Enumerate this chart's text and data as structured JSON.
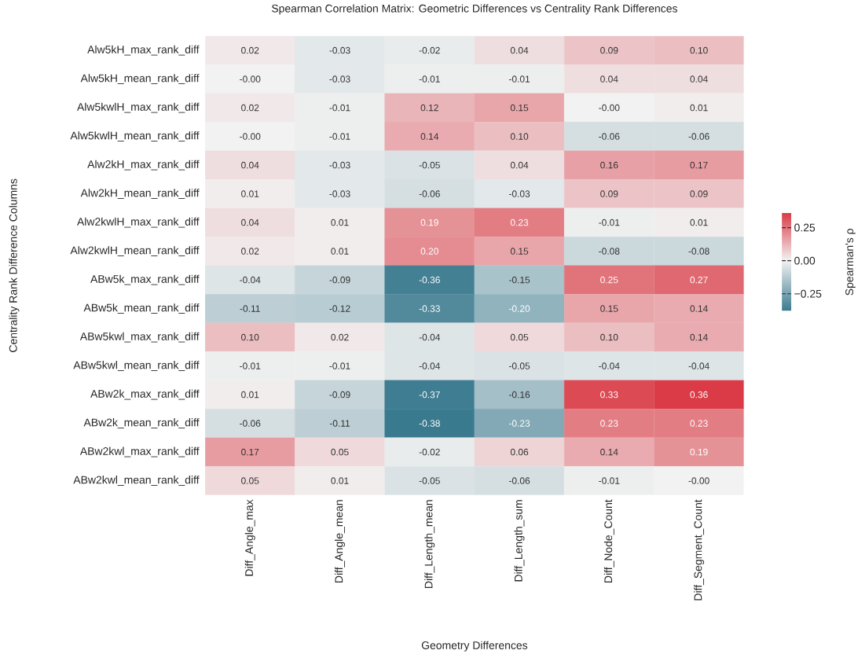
{
  "chart_data": {
    "type": "heatmap",
    "title": "Spearman Correlation Matrix: Geometric Differences vs Centrality Rank Differences",
    "xlabel": "Geometry Differences",
    "ylabel": "Centrality Rank Difference Columns",
    "clabel": "Spearman's ρ",
    "categories": [
      "Diff_Angle_max",
      "Diff_Angle_mean",
      "Diff_Length_mean",
      "Diff_Length_sum",
      "Diff_Node_Count",
      "Diff_Segment_Count"
    ],
    "y_categories": [
      "Alw5kH_max_rank_diff",
      "Alw5kH_mean_rank_diff",
      "Alw5kwlH_max_rank_diff",
      "Alw5kwlH_mean_rank_diff",
      "Alw2kH_max_rank_diff",
      "Alw2kH_mean_rank_diff",
      "Alw2kwlH_max_rank_diff",
      "Alw2kwlH_mean_rank_diff",
      "ABw5k_max_rank_diff",
      "ABw5k_mean_rank_diff",
      "ABw5kwl_max_rank_diff",
      "ABw5kwl_mean_rank_diff",
      "ABw2k_max_rank_diff",
      "ABw2k_mean_rank_diff",
      "ABw2kwl_max_rank_diff",
      "ABw2kwl_mean_rank_diff"
    ],
    "cells": [
      [
        0.02,
        -0.03,
        -0.02,
        0.04,
        0.09,
        0.1
      ],
      [
        -0.0,
        -0.03,
        -0.01,
        -0.01,
        0.04,
        0.04
      ],
      [
        0.02,
        -0.01,
        0.12,
        0.15,
        -0.0,
        0.01
      ],
      [
        -0.0,
        -0.01,
        0.14,
        0.1,
        -0.06,
        -0.06
      ],
      [
        0.04,
        -0.03,
        -0.05,
        0.04,
        0.16,
        0.17
      ],
      [
        0.01,
        -0.03,
        -0.06,
        -0.03,
        0.09,
        0.09
      ],
      [
        0.04,
        0.01,
        0.19,
        0.23,
        -0.01,
        0.01
      ],
      [
        0.02,
        0.01,
        0.2,
        0.15,
        -0.08,
        -0.08
      ],
      [
        -0.04,
        -0.09,
        -0.36,
        -0.15,
        0.25,
        0.27
      ],
      [
        -0.11,
        -0.12,
        -0.33,
        -0.2,
        0.15,
        0.14
      ],
      [
        0.1,
        0.02,
        -0.04,
        0.05,
        0.1,
        0.14
      ],
      [
        -0.01,
        -0.01,
        -0.04,
        -0.05,
        -0.04,
        -0.04
      ],
      [
        0.01,
        -0.09,
        -0.37,
        -0.16,
        0.33,
        0.36
      ],
      [
        -0.06,
        -0.11,
        -0.38,
        -0.23,
        0.23,
        0.23
      ],
      [
        0.17,
        0.05,
        -0.02,
        0.06,
        0.14,
        0.19
      ],
      [
        0.05,
        0.01,
        -0.05,
        -0.06,
        -0.01,
        -0.0
      ]
    ],
    "cell_labels": [
      [
        "0.02",
        "-0.03",
        "-0.02",
        "0.04",
        "0.09",
        "0.10"
      ],
      [
        "-0.00",
        "-0.03",
        "-0.01",
        "-0.01",
        "0.04",
        "0.04"
      ],
      [
        "0.02",
        "-0.01",
        "0.12",
        "0.15",
        "-0.00",
        "0.01"
      ],
      [
        "-0.00",
        "-0.01",
        "0.14",
        "0.10",
        "-0.06",
        "-0.06"
      ],
      [
        "0.04",
        "-0.03",
        "-0.05",
        "0.04",
        "0.16",
        "0.17"
      ],
      [
        "0.01",
        "-0.03",
        "-0.06",
        "-0.03",
        "0.09",
        "0.09"
      ],
      [
        "0.04",
        "0.01",
        "0.19",
        "0.23",
        "-0.01",
        "0.01"
      ],
      [
        "0.02",
        "0.01",
        "0.20",
        "0.15",
        "-0.08",
        "-0.08"
      ],
      [
        "-0.04",
        "-0.09",
        "-0.36",
        "-0.15",
        "0.25",
        "0.27"
      ],
      [
        "-0.11",
        "-0.12",
        "-0.33",
        "-0.20",
        "0.15",
        "0.14"
      ],
      [
        "0.10",
        "0.02",
        "-0.04",
        "0.05",
        "0.10",
        "0.14"
      ],
      [
        "-0.01",
        "-0.01",
        "-0.04",
        "-0.05",
        "-0.04",
        "-0.04"
      ],
      [
        "0.01",
        "-0.09",
        "-0.37",
        "-0.16",
        "0.33",
        "0.36"
      ],
      [
        "-0.06",
        "-0.11",
        "-0.38",
        "-0.23",
        "0.23",
        "0.23"
      ],
      [
        "0.17",
        "0.05",
        "-0.02",
        "0.06",
        "0.14",
        "0.19"
      ],
      [
        "0.05",
        "0.01",
        "-0.05",
        "-0.06",
        "-0.01",
        "-0.00"
      ]
    ],
    "clim": [
      -0.38,
      0.36
    ],
    "cticks": [
      {
        "value": -0.25,
        "label": "−0.25"
      },
      {
        "value": 0,
        "label": "0.00"
      },
      {
        "value": 0.25,
        "label": "0.25"
      }
    ]
  }
}
